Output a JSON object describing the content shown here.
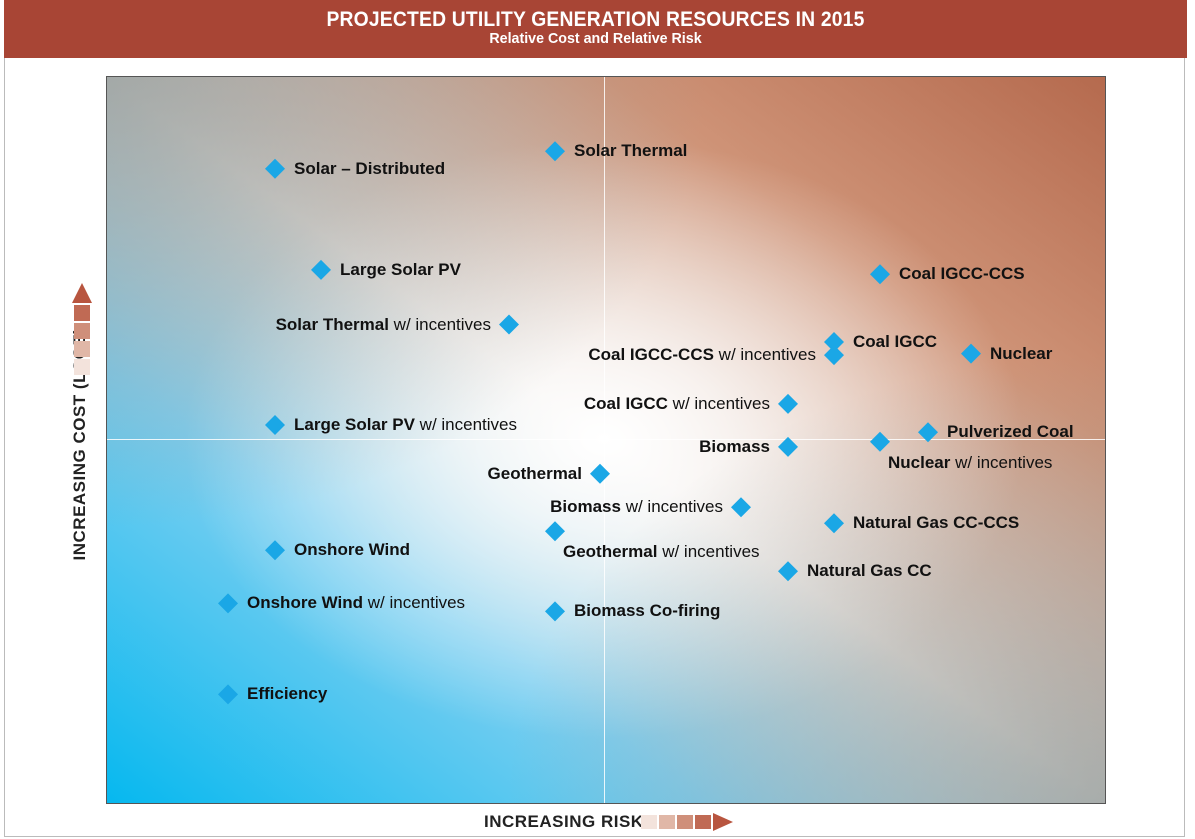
{
  "header": {
    "title": "PROJECTED UTILITY GENERATION RESOURCES IN 2015",
    "subtitle": "Relative Cost and Relative Risk"
  },
  "colors": {
    "header_bg": "#a84535",
    "marker": "#1aa7e6",
    "arrow": "#b8553f"
  },
  "chart_data": {
    "type": "scatter",
    "title": "PROJECTED UTILITY GENERATION RESOURCES IN 2015",
    "subtitle": "Relative Cost and Relative Risk",
    "xlabel": "INCREASING RISK",
    "ylabel": "INCREASING COST (LCOE)",
    "xlim": [
      0,
      100
    ],
    "ylim": [
      0,
      100
    ],
    "grid": false,
    "quadrant_split": {
      "x": 50,
      "y": 50
    },
    "points": [
      {
        "bold": "Solar – Distributed",
        "normal": "",
        "x": 16.8,
        "y": 87.4,
        "label_side": "right"
      },
      {
        "bold": "Solar Thermal",
        "normal": "",
        "x": 44.8,
        "y": 89.8,
        "label_side": "right"
      },
      {
        "bold": "Large Solar PV",
        "normal": "",
        "x": 21.4,
        "y": 73.5,
        "label_side": "right"
      },
      {
        "bold": "Solar Thermal",
        "normal": " w/ incentives",
        "x": 40.2,
        "y": 66.0,
        "label_side": "left"
      },
      {
        "bold": "Large Solar PV",
        "normal": " w/ incentives",
        "x": 16.8,
        "y": 52.2,
        "label_side": "right"
      },
      {
        "bold": "Coal IGCC-CCS",
        "normal": "",
        "x": 77.3,
        "y": 72.9,
        "label_side": "right"
      },
      {
        "bold": "Coal IGCC",
        "normal": "",
        "x": 72.7,
        "y": 63.6,
        "label_side": "right"
      },
      {
        "bold": "Coal IGCC-CCS",
        "normal": " w/ incentives",
        "x": 72.7,
        "y": 61.8,
        "label_side": "left"
      },
      {
        "bold": "Nuclear",
        "normal": "",
        "x": 86.4,
        "y": 62.0,
        "label_side": "right"
      },
      {
        "bold": "Coal IGCC",
        "normal": " w/ incentives",
        "x": 68.1,
        "y": 55.1,
        "label_side": "left"
      },
      {
        "bold": "Pulverized Coal",
        "normal": "",
        "x": 82.1,
        "y": 51.2,
        "label_side": "right"
      },
      {
        "bold": "Nuclear",
        "normal": " w/ incentives",
        "x": 77.3,
        "y": 49.9,
        "label_side": "below-right"
      },
      {
        "bold": "Biomass",
        "normal": "",
        "x": 68.1,
        "y": 49.2,
        "label_side": "left"
      },
      {
        "bold": "Geothermal",
        "normal": "",
        "x": 49.3,
        "y": 45.5,
        "label_side": "left"
      },
      {
        "bold": "Biomass",
        "normal": " w/ incentives",
        "x": 63.4,
        "y": 40.9,
        "label_side": "left"
      },
      {
        "bold": "Natural Gas CC-CCS",
        "normal": "",
        "x": 72.7,
        "y": 38.7,
        "label_side": "right"
      },
      {
        "bold": "Geothermal",
        "normal": " w/ incentives",
        "x": 44.8,
        "y": 37.6,
        "label_side": "below-right"
      },
      {
        "bold": "Onshore Wind",
        "normal": "",
        "x": 16.8,
        "y": 35.0,
        "label_side": "right"
      },
      {
        "bold": "Natural Gas CC",
        "normal": "",
        "x": 68.1,
        "y": 32.1,
        "label_side": "right"
      },
      {
        "bold": "Onshore Wind",
        "normal": " w/ incentives",
        "x": 12.1,
        "y": 27.7,
        "label_side": "right"
      },
      {
        "bold": "Biomass Co-firing",
        "normal": "",
        "x": 44.8,
        "y": 26.6,
        "label_side": "right"
      },
      {
        "bold": "Efficiency",
        "normal": "",
        "x": 12.1,
        "y": 15.2,
        "label_side": "right"
      }
    ]
  }
}
